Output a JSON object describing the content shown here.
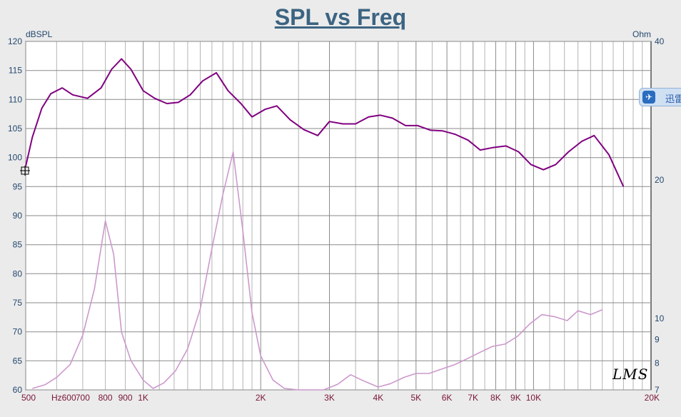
{
  "chart_data": {
    "type": "line",
    "title": "SPL vs Freq",
    "y_left_label": "dBSPL",
    "y_right_label": "Ohm",
    "x_scale": "log",
    "xlim": [
      500,
      20000
    ],
    "ylim_left": [
      60,
      120
    ],
    "ylim_right_ticks": [
      7,
      8,
      9,
      10,
      20,
      40
    ],
    "x_ticks": [
      {
        "value": 500,
        "label": "500"
      },
      {
        "value": 600,
        "label": "Hz600"
      },
      {
        "value": 700,
        "label": "700"
      },
      {
        "value": 800,
        "label": "800"
      },
      {
        "value": 900,
        "label": "900"
      },
      {
        "value": 1000,
        "label": "1K"
      },
      {
        "value": 2000,
        "label": "2K"
      },
      {
        "value": 3000,
        "label": "3K"
      },
      {
        "value": 4000,
        "label": "4K"
      },
      {
        "value": 5000,
        "label": "5K"
      },
      {
        "value": 6000,
        "label": "6K"
      },
      {
        "value": 7000,
        "label": "7K"
      },
      {
        "value": 8000,
        "label": "8K"
      },
      {
        "value": 9000,
        "label": "9K"
      },
      {
        "value": 10000,
        "label": "10K"
      },
      {
        "value": 20000,
        "label": "20K"
      }
    ],
    "y_left_ticks": [
      120,
      115,
      110,
      105,
      100,
      95,
      90,
      85,
      80,
      75,
      70,
      65,
      60
    ],
    "grid": true,
    "series": [
      {
        "color": "#800080",
        "axis": "left",
        "points": [
          [
            500,
            98.5
          ],
          [
            520,
            103.5
          ],
          [
            550,
            108.5
          ],
          [
            580,
            111
          ],
          [
            620,
            112
          ],
          [
            660,
            110.8
          ],
          [
            720,
            110.2
          ],
          [
            780,
            112
          ],
          [
            830,
            115.2
          ],
          [
            880,
            117
          ],
          [
            930,
            115.2
          ],
          [
            1000,
            111.5
          ],
          [
            1070,
            110.2
          ],
          [
            1150,
            109.3
          ],
          [
            1230,
            109.5
          ],
          [
            1320,
            110.8
          ],
          [
            1420,
            113.2
          ],
          [
            1540,
            114.6
          ],
          [
            1650,
            111.5
          ],
          [
            1780,
            109.3
          ],
          [
            1900,
            107
          ],
          [
            2050,
            108.3
          ],
          [
            2200,
            108.9
          ],
          [
            2380,
            106.5
          ],
          [
            2580,
            104.8
          ],
          [
            2800,
            103.8
          ],
          [
            3000,
            106.2
          ],
          [
            3250,
            105.8
          ],
          [
            3500,
            105.8
          ],
          [
            3780,
            107
          ],
          [
            4050,
            107.3
          ],
          [
            4350,
            106.8
          ],
          [
            4700,
            105.5
          ],
          [
            5050,
            105.5
          ],
          [
            5450,
            104.7
          ],
          [
            5850,
            104.6
          ],
          [
            6300,
            104
          ],
          [
            6800,
            103
          ],
          [
            7300,
            101.3
          ],
          [
            7850,
            101.7
          ],
          [
            8500,
            102
          ],
          [
            9150,
            101
          ],
          [
            9850,
            98.8
          ],
          [
            10600,
            97.9
          ],
          [
            11400,
            98.8
          ],
          [
            12300,
            101
          ],
          [
            13300,
            102.8
          ],
          [
            14300,
            103.8
          ],
          [
            15600,
            100.5
          ],
          [
            17000,
            95
          ]
        ]
      },
      {
        "color": "#cc99cc",
        "axis": "right",
        "points": [
          [
            520,
            7.05
          ],
          [
            560,
            7.18
          ],
          [
            600,
            7.45
          ],
          [
            650,
            7.95
          ],
          [
            700,
            9.2
          ],
          [
            750,
            11.6
          ],
          [
            800,
            16.3
          ],
          [
            840,
            13.8
          ],
          [
            880,
            9.35
          ],
          [
            930,
            8.1
          ],
          [
            1000,
            7.35
          ],
          [
            1060,
            7.05
          ],
          [
            1130,
            7.25
          ],
          [
            1210,
            7.7
          ],
          [
            1300,
            8.6
          ],
          [
            1400,
            10.5
          ],
          [
            1500,
            14.2
          ],
          [
            1600,
            18.6
          ],
          [
            1700,
            23
          ],
          [
            1800,
            15.5
          ],
          [
            1900,
            10.3
          ],
          [
            2000,
            8.3
          ],
          [
            2150,
            7.35
          ],
          [
            2300,
            7.05
          ],
          [
            2500,
            7
          ],
          [
            2700,
            6.95
          ],
          [
            2900,
            6.95
          ],
          [
            3150,
            7.2
          ],
          [
            3400,
            7.55
          ],
          [
            3700,
            7.3
          ],
          [
            4000,
            7.1
          ],
          [
            4300,
            7.22
          ],
          [
            4650,
            7.45
          ],
          [
            5000,
            7.6
          ],
          [
            5400,
            7.6
          ],
          [
            5850,
            7.78
          ],
          [
            6300,
            7.95
          ],
          [
            6800,
            8.2
          ],
          [
            7300,
            8.45
          ],
          [
            7850,
            8.7
          ],
          [
            8450,
            8.8
          ],
          [
            9100,
            9.15
          ],
          [
            9800,
            9.75
          ],
          [
            10500,
            10.2
          ],
          [
            11300,
            10.1
          ],
          [
            12200,
            9.9
          ],
          [
            13000,
            10.4
          ],
          [
            14000,
            10.2
          ],
          [
            15000,
            10.45
          ]
        ]
      }
    ]
  },
  "badge": {
    "icon": "✈",
    "text": "迅雷"
  },
  "watermark": "LMS"
}
